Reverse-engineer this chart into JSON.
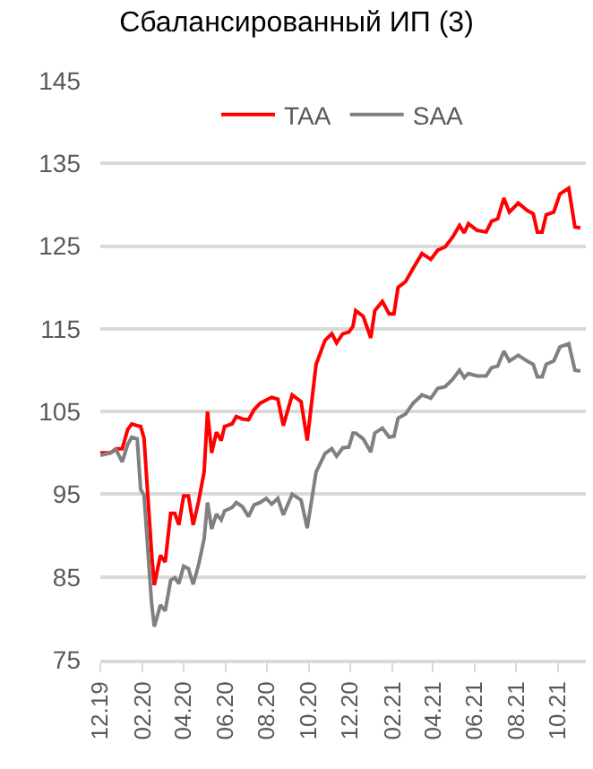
{
  "chart_data": {
    "type": "line",
    "title": "Сбалансированный ИП (3)",
    "x": [
      "2019-12-01",
      "2019-12-16",
      "2019-12-24",
      "2020-01-02",
      "2020-01-10",
      "2020-01-16",
      "2020-01-24",
      "2020-01-29",
      "2020-02-03",
      "2020-02-14",
      "2020-02-18",
      "2020-02-27",
      "2020-03-05",
      "2020-03-13",
      "2020-03-19",
      "2020-03-25",
      "2020-04-01",
      "2020-04-08",
      "2020-04-15",
      "2020-04-23",
      "2020-05-01",
      "2020-05-06",
      "2020-05-12",
      "2020-05-19",
      "2020-05-26",
      "2020-05-31",
      "2020-06-11",
      "2020-06-17",
      "2020-06-26",
      "2020-07-05",
      "2020-07-13",
      "2020-07-22",
      "2020-07-31",
      "2020-08-08",
      "2020-08-17",
      "2020-08-25",
      "2020-09-07",
      "2020-09-20",
      "2020-09-29",
      "2020-10-12",
      "2020-10-25",
      "2020-11-04",
      "2020-11-11",
      "2020-11-20",
      "2020-11-29",
      "2020-12-05",
      "2020-12-09",
      "2020-12-20",
      "2020-12-31",
      "2021-01-06",
      "2021-01-17",
      "2021-01-27",
      "2021-02-03",
      "2021-02-09",
      "2021-02-20",
      "2021-03-03",
      "2021-03-16",
      "2021-03-29",
      "2021-04-08",
      "2021-04-19",
      "2021-04-30",
      "2021-05-10",
      "2021-05-17",
      "2021-05-23",
      "2021-06-05",
      "2021-06-18",
      "2021-06-26",
      "2021-07-05",
      "2021-07-14",
      "2021-07-22",
      "2021-08-04",
      "2021-08-17",
      "2021-08-26",
      "2021-09-01",
      "2021-09-08",
      "2021-09-14",
      "2021-09-25",
      "2021-10-04",
      "2021-10-17",
      "2021-10-26",
      "2021-11-03"
    ],
    "series": [
      {
        "name": "TAA",
        "color": "#ff0000",
        "values": [
          100,
          100,
          100.5,
          100.5,
          102.8,
          103.5,
          103.3,
          103.2,
          101.8,
          88,
          84,
          87.6,
          86.8,
          92.7,
          92.7,
          91.3,
          94.8,
          94.8,
          91.3,
          94.2,
          97.7,
          105,
          100,
          102.5,
          101.5,
          103.2,
          103.5,
          104.4,
          104.1,
          104,
          105.2,
          106,
          106.4,
          106.7,
          106.5,
          103.3,
          107,
          106.2,
          101.5,
          110.7,
          113.6,
          114.4,
          113.3,
          114.4,
          114.6,
          115.3,
          117.2,
          116.5,
          113.9,
          117.2,
          118.3,
          116.8,
          116.8,
          120,
          120.7,
          122.3,
          124.1,
          123.4,
          124.5,
          124.9,
          126.1,
          127.5,
          126.6,
          127.7,
          126.9,
          126.7,
          128,
          128.3,
          130.8,
          129.1,
          130.2,
          129.3,
          128.9,
          126.7,
          126.7,
          128.8,
          129.1,
          131.3,
          132,
          127.3,
          127.2
        ]
      },
      {
        "name": "SAA",
        "color": "#808080",
        "values": [
          99.7,
          100,
          100.4,
          98.9,
          101,
          101.9,
          101.7,
          95.6,
          94.9,
          81.9,
          79,
          81.6,
          80.9,
          84.6,
          84.9,
          84.2,
          86.3,
          86,
          84.1,
          86.5,
          89.6,
          94,
          90.8,
          92.6,
          91.9,
          93,
          93.4,
          94,
          93.5,
          92.3,
          93.7,
          94,
          94.5,
          93.8,
          94.5,
          92.5,
          95,
          94.3,
          90.9,
          97.7,
          99.9,
          100.5,
          99.6,
          100.6,
          100.7,
          102.4,
          102.4,
          101.7,
          100.1,
          102.4,
          103,
          101.9,
          102,
          104.2,
          104.7,
          106,
          107,
          106.6,
          107.8,
          108,
          108.9,
          110,
          109.1,
          109.6,
          109.3,
          109.3,
          110.3,
          110.5,
          112.3,
          111.1,
          111.8,
          111.1,
          110.7,
          109.2,
          109.2,
          110.7,
          111.1,
          112.8,
          113.2,
          110,
          109.9
        ]
      }
    ],
    "xlim": [
      "2019-12-01",
      "2021-11-11"
    ],
    "xticks": [
      {
        "value": "2019-12-01",
        "label": "12.19"
      },
      {
        "value": "2020-02-01",
        "label": "02.20"
      },
      {
        "value": "2020-04-01",
        "label": "04.20"
      },
      {
        "value": "2020-06-01",
        "label": "06.20"
      },
      {
        "value": "2020-08-01",
        "label": "08.20"
      },
      {
        "value": "2020-10-01",
        "label": "10.20"
      },
      {
        "value": "2020-12-01",
        "label": "12.20"
      },
      {
        "value": "2021-02-01",
        "label": "02.21"
      },
      {
        "value": "2021-04-01",
        "label": "04.21"
      },
      {
        "value": "2021-06-01",
        "label": "06.21"
      },
      {
        "value": "2021-08-01",
        "label": "08.21"
      },
      {
        "value": "2021-10-01",
        "label": "10.21"
      }
    ],
    "ylim": [
      75,
      145
    ],
    "yticks": [
      75,
      85,
      95,
      105,
      115,
      125,
      135,
      145
    ],
    "grid": "y",
    "legend": "top",
    "marker": "none",
    "line_style": "solid"
  }
}
